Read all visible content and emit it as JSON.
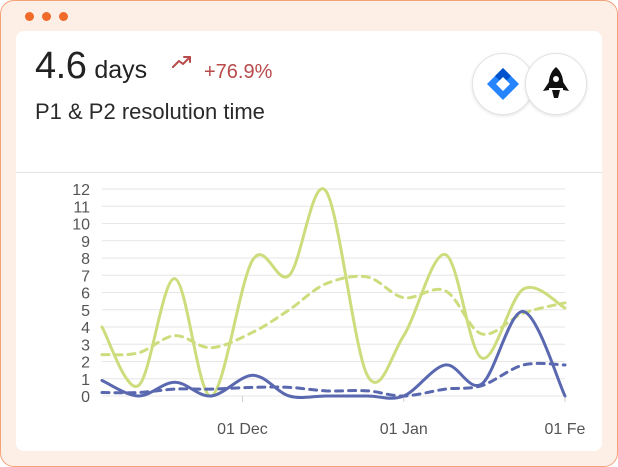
{
  "window": {
    "controls": [
      "close",
      "minimize",
      "maximize"
    ]
  },
  "header": {
    "value": "4.6",
    "unit": "days",
    "trend_icon": "trending-up-icon",
    "delta": "+76.9%",
    "subtitle": "P1 & P2 resolution time",
    "integrations": [
      {
        "icon": "jira-icon",
        "color": "#2684ff"
      },
      {
        "icon": "rocket-icon",
        "color": "#111111"
      }
    ]
  },
  "colors": {
    "accent": "#f06a2a",
    "delta": "#b84a4a",
    "green_series": "#cddc7c",
    "blue_series": "#5a68b0"
  },
  "chart_data": {
    "type": "line",
    "ylim": [
      0,
      12
    ],
    "y_ticks": [
      "0",
      "1",
      "2",
      "3",
      "4",
      "5",
      "6",
      "7",
      "8",
      "9",
      "10",
      "11",
      "12"
    ],
    "x_range": [
      "2024-11-04",
      "2025-02-01"
    ],
    "x_ticks": [
      {
        "date": "2024-12-01",
        "label": "01 Dec"
      },
      {
        "date": "2025-01-01",
        "label": "01 Jan"
      },
      {
        "date": "2025-02-01",
        "label": "01 Fe"
      }
    ],
    "grid": true,
    "legend": "none",
    "series": [
      {
        "style": "solid",
        "color": "#cddc7c",
        "points": [
          [
            "2024-11-04",
            4.0
          ],
          [
            "2024-11-11",
            0.6
          ],
          [
            "2024-11-18",
            6.8
          ],
          [
            "2024-11-25",
            0.0
          ],
          [
            "2024-12-03",
            7.9
          ],
          [
            "2024-12-10",
            7.0
          ],
          [
            "2024-12-17",
            11.9
          ],
          [
            "2024-12-25",
            1.2
          ],
          [
            "2025-01-01",
            3.5
          ],
          [
            "2025-01-09",
            8.2
          ],
          [
            "2025-01-16",
            2.2
          ],
          [
            "2025-01-24",
            6.2
          ],
          [
            "2025-02-01",
            5.1
          ]
        ]
      },
      {
        "style": "dashed",
        "color": "#cddc7c",
        "points": [
          [
            "2024-11-04",
            2.4
          ],
          [
            "2024-11-11",
            2.5
          ],
          [
            "2024-11-18",
            3.5
          ],
          [
            "2024-11-25",
            2.8
          ],
          [
            "2024-12-03",
            3.7
          ],
          [
            "2024-12-10",
            5.0
          ],
          [
            "2024-12-17",
            6.5
          ],
          [
            "2024-12-25",
            6.9
          ],
          [
            "2025-01-01",
            5.7
          ],
          [
            "2025-01-09",
            6.1
          ],
          [
            "2025-01-16",
            3.6
          ],
          [
            "2025-01-24",
            4.8
          ],
          [
            "2025-02-01",
            5.4
          ]
        ]
      },
      {
        "style": "solid",
        "color": "#5a68b0",
        "points": [
          [
            "2024-11-04",
            0.9
          ],
          [
            "2024-11-11",
            0.0
          ],
          [
            "2024-11-18",
            0.8
          ],
          [
            "2024-11-25",
            0.0
          ],
          [
            "2024-12-03",
            1.2
          ],
          [
            "2024-12-10",
            0.0
          ],
          [
            "2024-12-17",
            0.0
          ],
          [
            "2024-12-25",
            0.0
          ],
          [
            "2025-01-01",
            0.0
          ],
          [
            "2025-01-09",
            1.8
          ],
          [
            "2025-01-16",
            0.7
          ],
          [
            "2025-01-24",
            4.9
          ],
          [
            "2025-02-01",
            0.0
          ]
        ]
      },
      {
        "style": "dashed",
        "color": "#5a68b0",
        "points": [
          [
            "2024-11-04",
            0.2
          ],
          [
            "2024-11-11",
            0.2
          ],
          [
            "2024-11-18",
            0.4
          ],
          [
            "2024-11-25",
            0.4
          ],
          [
            "2024-12-03",
            0.5
          ],
          [
            "2024-12-10",
            0.5
          ],
          [
            "2024-12-17",
            0.3
          ],
          [
            "2024-12-25",
            0.3
          ],
          [
            "2025-01-01",
            0.0
          ],
          [
            "2025-01-09",
            0.4
          ],
          [
            "2025-01-16",
            0.6
          ],
          [
            "2025-01-24",
            1.8
          ],
          [
            "2025-02-01",
            1.8
          ]
        ]
      }
    ]
  }
}
